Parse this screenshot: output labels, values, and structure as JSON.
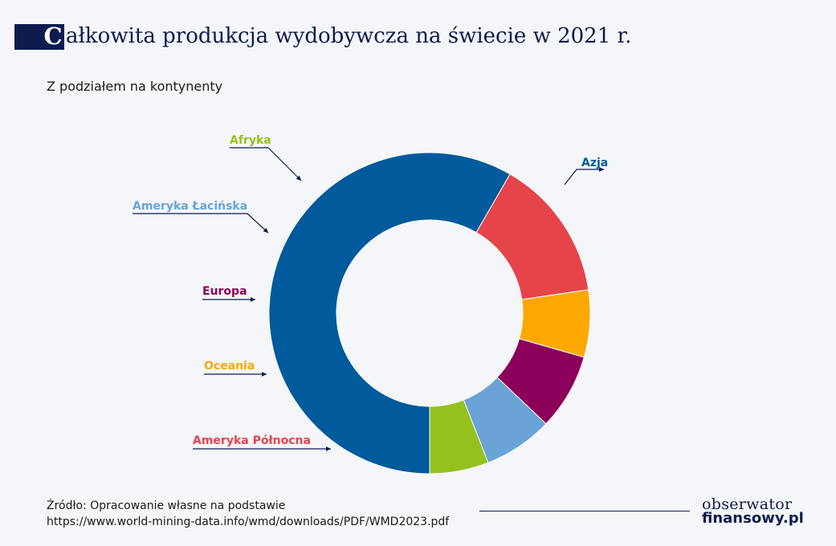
{
  "header": {
    "title_initial": "C",
    "title_rest": "ałkowita produkcja wydobywcza na świecie w 2021 r.",
    "subtitle": "Z podziałem na kontynenty"
  },
  "chart_data": {
    "type": "pie",
    "donut": true,
    "title": "Całkowita produkcja wydobywcza na świecie w 2021 r.",
    "subtitle": "Z podziałem na kontynenty",
    "categories": [
      "Azja",
      "Ameryka Północna",
      "Oceania",
      "Europa",
      "Ameryka Łacińska",
      "Afryka"
    ],
    "values": [
      57.0,
      14.0,
      6.6,
      7.5,
      6.8,
      5.8
    ],
    "colors": [
      "#005a9c",
      "#e5444b",
      "#fca800",
      "#8b005a",
      "#6aa3d6",
      "#95c11f"
    ],
    "label_colors": [
      "#005a9c",
      "#e5444b",
      "#fca800",
      "#8b005a",
      "#6aa3d6",
      "#95c11f"
    ]
  },
  "footer": {
    "source_line1": "Źródło: Opracowanie własne na podstawie",
    "source_line2": "https://www.world-mining-data.info/wmd/downloads/PDF/WMD2023.pdf",
    "logo_top": "obserwator",
    "logo_bottom": "finansowy.pl"
  }
}
